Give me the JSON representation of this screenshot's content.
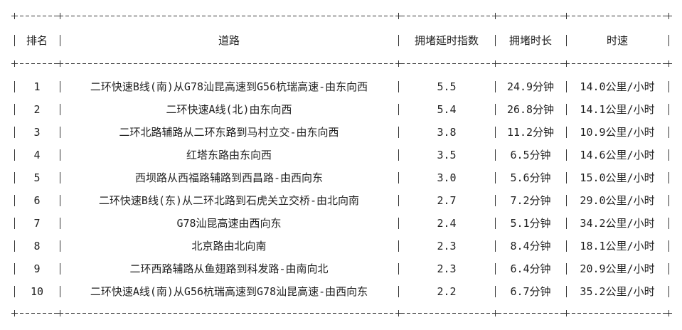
{
  "table": {
    "headers": [
      "排名",
      "道路",
      "拥堵延时指数",
      "拥堵时长",
      "时速"
    ],
    "rows": [
      [
        "1",
        "二环快速B线(南)从G78汕昆高速到G56杭瑞高速-由东向西",
        "5.5",
        "24.9分钟",
        "14.0公里/小时"
      ],
      [
        "2",
        "二环快速A线(北)由东向西",
        "5.4",
        "26.8分钟",
        "14.1公里/小时"
      ],
      [
        "3",
        "二环北路辅路从二环东路到马村立交-由东向西",
        "3.8",
        "11.2分钟",
        "10.9公里/小时"
      ],
      [
        "4",
        "红塔东路由东向西",
        "3.5",
        "6.5分钟",
        "14.6公里/小时"
      ],
      [
        "5",
        "西坝路从西福路辅路到西昌路-由西向东",
        "3.0",
        "5.6分钟",
        "15.0公里/小时"
      ],
      [
        "6",
        "二环快速B线(东)从二环北路到石虎关立交桥-由北向南",
        "2.7",
        "7.2分钟",
        "29.0公里/小时"
      ],
      [
        "7",
        "G78汕昆高速由西向东",
        "2.4",
        "5.1分钟",
        "34.2公里/小时"
      ],
      [
        "8",
        "北京路由北向南",
        "2.3",
        "8.4分钟",
        "18.1公里/小时"
      ],
      [
        "9",
        "二环西路辅路从鱼翅路到科发路-由南向北",
        "2.3",
        "6.4分钟",
        "20.9公里/小时"
      ],
      [
        "10",
        "二环快速A线(南)从G56杭瑞高速到G78汕昆高速-由西向东",
        "2.2",
        "6.7分钟",
        "35.2公里/小时"
      ]
    ]
  }
}
